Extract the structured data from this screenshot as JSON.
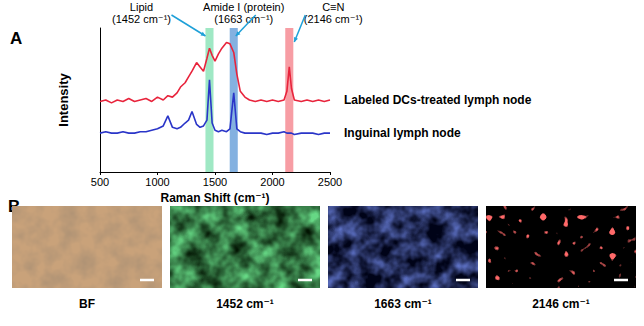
{
  "chart_data": {
    "type": "line",
    "panel_label": "A",
    "xlabel": "Raman Shift (cm⁻¹)",
    "ylabel": "Intensity",
    "xlim": [
      500,
      2500
    ],
    "xticks": [
      500,
      1000,
      1500,
      2000,
      2500
    ],
    "ylim": [
      0,
      10
    ],
    "tick_labels": "x",
    "grid": false,
    "x": [
      500,
      550,
      600,
      650,
      700,
      750,
      800,
      850,
      900,
      950,
      1000,
      1050,
      1090,
      1130,
      1170,
      1200,
      1240,
      1270,
      1300,
      1340,
      1370,
      1400,
      1430,
      1452,
      1475,
      1500,
      1530,
      1560,
      1600,
      1630,
      1663,
      1690,
      1720,
      1760,
      1800,
      1850,
      1900,
      1950,
      2000,
      2050,
      2100,
      2125,
      2146,
      2165,
      2190,
      2250,
      2300,
      2350,
      2400,
      2450,
      2500
    ],
    "series": [
      {
        "name": "Labeled DCs-treated lymph node",
        "color": "#e8243c",
        "values": [
          4.9,
          5.0,
          4.8,
          5.0,
          4.9,
          5.1,
          4.9,
          5.0,
          5.1,
          4.9,
          5.2,
          5.0,
          5.3,
          5.2,
          5.5,
          5.9,
          6.2,
          6.6,
          7.0,
          7.6,
          7.3,
          7.0,
          7.9,
          8.6,
          8.1,
          7.7,
          8.2,
          8.6,
          9.0,
          8.9,
          8.3,
          6.8,
          5.6,
          5.2,
          5.0,
          4.9,
          5.0,
          4.9,
          5.0,
          4.9,
          5.0,
          5.6,
          7.3,
          5.8,
          5.0,
          4.9,
          5.0,
          4.9,
          5.0,
          4.9,
          5.0
        ]
      },
      {
        "name": "Inguinal lymph node",
        "color": "#2a35c8",
        "values": [
          2.7,
          2.8,
          2.7,
          2.7,
          2.8,
          2.7,
          2.7,
          2.8,
          2.8,
          2.9,
          3.0,
          3.2,
          3.9,
          3.1,
          3.0,
          3.1,
          3.4,
          3.6,
          4.2,
          3.3,
          3.1,
          3.2,
          3.6,
          6.4,
          3.4,
          2.9,
          2.8,
          2.9,
          2.8,
          3.0,
          5.5,
          3.0,
          2.8,
          2.7,
          2.7,
          2.7,
          2.7,
          2.6,
          2.7,
          2.7,
          2.8,
          2.7,
          2.7,
          2.7,
          2.6,
          2.7,
          2.7,
          2.7,
          2.6,
          2.7,
          2.7
        ]
      }
    ],
    "annotations": [
      {
        "x": 1452,
        "label": "Lipid\n(1452 cm⁻¹)",
        "color": "#7fe0b0"
      },
      {
        "x": 1663,
        "label": "Amide I (protein)\n(1663 cm⁻¹)",
        "color": "#5b97d6"
      },
      {
        "x": 2146,
        "label": "C≡N\n(2146 cm⁻¹)",
        "color": "#f47c86"
      }
    ]
  },
  "image_panel": {
    "panel_label": "B",
    "images": [
      {
        "label": "BF",
        "color": "#c9a27a"
      },
      {
        "label": "1452 cm⁻¹",
        "color": "#22b03c"
      },
      {
        "label": "1663 cm⁻¹",
        "color": "#2a3fd0"
      },
      {
        "label": "2146 cm⁻¹",
        "color": "#ff2424"
      }
    ]
  }
}
